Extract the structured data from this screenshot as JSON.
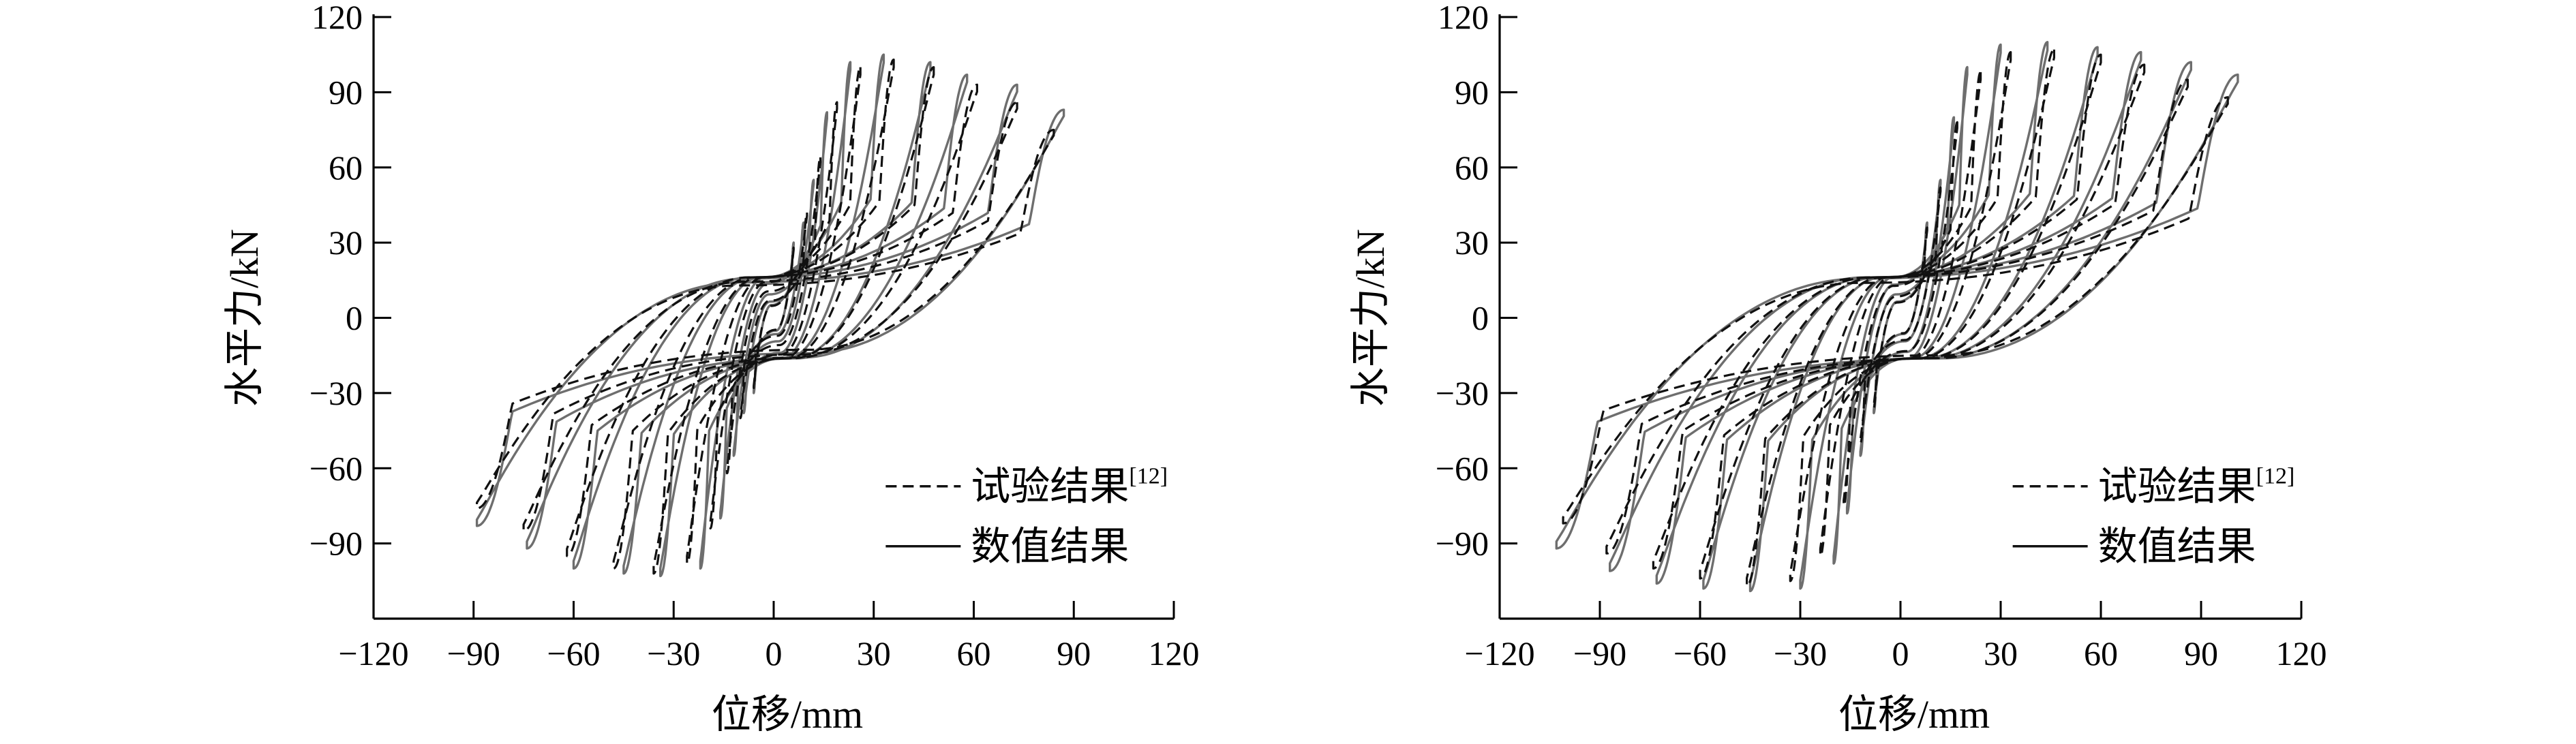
{
  "chart_data": [
    {
      "type": "line",
      "title": "",
      "xlabel": "位移/mm",
      "ylabel": "水平力/kN",
      "xlim": [
        -120,
        120
      ],
      "ylim": [
        -120,
        120
      ],
      "xticks": [
        -120,
        -90,
        -60,
        -30,
        0,
        30,
        60,
        90,
        120
      ],
      "yticks": [
        -90,
        -60,
        -30,
        0,
        30,
        60,
        90,
        120
      ],
      "xtick_labels": [
        "−120",
        "−90",
        "−60",
        "−30",
        "0",
        "30",
        "60",
        "90",
        "120"
      ],
      "ytick_labels": [
        "−90",
        "−60",
        "−30",
        "0",
        "30",
        "60",
        "90",
        "120"
      ],
      "grid": false,
      "legend_position": "bottom-right",
      "legend": [
        {
          "label": "试验结果",
          "ref": "[12]",
          "style": "dashed",
          "color": "#111111"
        },
        {
          "label": "数值结果",
          "ref": "",
          "style": "solid",
          "color": "#6e6e6e"
        }
      ],
      "series": [
        {
          "label": "数值结果",
          "style": "solid",
          "loops": [
            {
              "xmax": 6,
              "fmax": 30,
              "xmin": -6,
              "fmin": -30
            },
            {
              "xmax": 9,
              "fmax": 38,
              "xmin": -9,
              "fmin": -38
            },
            {
              "xmax": 12,
              "fmax": 55,
              "xmin": -12,
              "fmin": -55
            },
            {
              "xmax": 16,
              "fmax": 82,
              "xmin": -16,
              "fmin": -80
            },
            {
              "xmax": 23,
              "fmax": 102,
              "xmin": -22,
              "fmin": -100
            },
            {
              "xmax": 33,
              "fmax": 105,
              "xmin": -34,
              "fmin": -103
            },
            {
              "xmax": 47,
              "fmax": 102,
              "xmin": -45,
              "fmin": -102
            },
            {
              "xmax": 58,
              "fmax": 97,
              "xmin": -60,
              "fmin": -100
            },
            {
              "xmax": 73,
              "fmax": 93,
              "xmin": -74,
              "fmin": -92
            },
            {
              "xmax": 87,
              "fmax": 83,
              "xmin": -89,
              "fmin": -83
            }
          ]
        },
        {
          "label": "试验结果",
          "style": "dashed",
          "loops": [
            {
              "xmax": 6,
              "fmax": 28,
              "xmin": -6,
              "fmin": -28
            },
            {
              "xmax": 10,
              "fmax": 42,
              "xmin": -10,
              "fmin": -40
            },
            {
              "xmax": 14,
              "fmax": 64,
              "xmin": -14,
              "fmin": -62
            },
            {
              "xmax": 19,
              "fmax": 86,
              "xmin": -19,
              "fmin": -84
            },
            {
              "xmax": 26,
              "fmax": 100,
              "xmin": -26,
              "fmin": -98
            },
            {
              "xmax": 36,
              "fmax": 103,
              "xmin": -36,
              "fmin": -102
            },
            {
              "xmax": 48,
              "fmax": 100,
              "xmin": -48,
              "fmin": -100
            },
            {
              "xmax": 61,
              "fmax": 93,
              "xmin": -62,
              "fmin": -95
            },
            {
              "xmax": 73,
              "fmax": 86,
              "xmin": -75,
              "fmin": -85
            },
            {
              "xmax": 84,
              "fmax": 75,
              "xmin": -89,
              "fmin": -76
            }
          ]
        }
      ]
    },
    {
      "type": "line",
      "title": "",
      "xlabel": "位移/mm",
      "ylabel": "水平力/kN",
      "xlim": [
        -120,
        120
      ],
      "ylim": [
        -120,
        120
      ],
      "xticks": [
        -120,
        -90,
        -60,
        -30,
        0,
        30,
        60,
        90,
        120
      ],
      "yticks": [
        -90,
        -60,
        -30,
        0,
        30,
        60,
        90,
        120
      ],
      "xtick_labels": [
        "−120",
        "−90",
        "−60",
        "−30",
        "0",
        "30",
        "60",
        "90",
        "120"
      ],
      "ytick_labels": [
        "−90",
        "−60",
        "−30",
        "0",
        "30",
        "60",
        "90",
        "120"
      ],
      "grid": false,
      "legend_position": "bottom-right",
      "legend": [
        {
          "label": "试验结果",
          "ref": "[12]",
          "style": "dashed",
          "color": "#111111"
        },
        {
          "label": "数值结果",
          "ref": "",
          "style": "solid",
          "color": "#6e6e6e"
        }
      ],
      "series": [
        {
          "label": "数值结果",
          "style": "solid",
          "loops": [
            {
              "xmax": 8,
              "fmax": 38,
              "xmin": -8,
              "fmin": -38
            },
            {
              "xmax": 12,
              "fmax": 55,
              "xmin": -12,
              "fmin": -55
            },
            {
              "xmax": 16,
              "fmax": 80,
              "xmin": -16,
              "fmin": -78
            },
            {
              "xmax": 20,
              "fmax": 100,
              "xmin": -20,
              "fmin": -98
            },
            {
              "xmax": 30,
              "fmax": 109,
              "xmin": -30,
              "fmin": -108
            },
            {
              "xmax": 44,
              "fmax": 110,
              "xmin": -45,
              "fmin": -109
            },
            {
              "xmax": 59,
              "fmax": 108,
              "xmin": -59,
              "fmin": -108
            },
            {
              "xmax": 72,
              "fmax": 106,
              "xmin": -73,
              "fmin": -106
            },
            {
              "xmax": 87,
              "fmax": 102,
              "xmin": -87,
              "fmin": -101
            },
            {
              "xmax": 101,
              "fmax": 97,
              "xmin": -103,
              "fmin": -92
            }
          ]
        },
        {
          "label": "试验结果",
          "style": "dashed",
          "loops": [
            {
              "xmax": 8,
              "fmax": 36,
              "xmin": -8,
              "fmin": -36
            },
            {
              "xmax": 12,
              "fmax": 52,
              "xmin": -12,
              "fmin": -50
            },
            {
              "xmax": 17,
              "fmax": 78,
              "xmin": -17,
              "fmin": -75
            },
            {
              "xmax": 24,
              "fmax": 98,
              "xmin": -24,
              "fmin": -95
            },
            {
              "xmax": 33,
              "fmax": 106,
              "xmin": -33,
              "fmin": -105
            },
            {
              "xmax": 46,
              "fmax": 107,
              "xmin": -46,
              "fmin": -107
            },
            {
              "xmax": 60,
              "fmax": 105,
              "xmin": -60,
              "fmin": -104
            },
            {
              "xmax": 73,
              "fmax": 101,
              "xmin": -74,
              "fmin": -100
            },
            {
              "xmax": 86,
              "fmax": 95,
              "xmin": -88,
              "fmin": -94
            },
            {
              "xmax": 98,
              "fmax": 88,
              "xmin": -101,
              "fmin": -82
            }
          ]
        }
      ]
    }
  ]
}
